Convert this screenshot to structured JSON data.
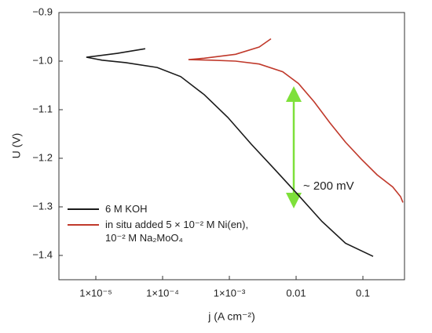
{
  "chart_data": {
    "type": "line",
    "xlabel": "j (A cm⁻²)",
    "ylabel": "U (V)",
    "xscale": "log",
    "xlim": [
      2.8e-06,
      0.42
    ],
    "ylim": [
      -1.45,
      -0.9
    ],
    "xticks": [
      {
        "value": 1e-05,
        "label": "1×10⁻⁵"
      },
      {
        "value": 0.0001,
        "label": "1×10⁻⁴"
      },
      {
        "value": 0.001,
        "label": "1×10⁻³"
      },
      {
        "value": 0.01,
        "label": "0.01"
      },
      {
        "value": 0.1,
        "label": "0.1"
      }
    ],
    "yticks": [
      {
        "value": -0.9,
        "label": "−0.9"
      },
      {
        "value": -1.0,
        "label": "−1.0"
      },
      {
        "value": -1.1,
        "label": "−1.1"
      },
      {
        "value": -1.2,
        "label": "−1.2"
      },
      {
        "value": -1.3,
        "label": "−1.3"
      },
      {
        "value": -1.4,
        "label": "−1.4"
      }
    ],
    "annotation": "~ 200 mV",
    "series": [
      {
        "name": "6 M KOH",
        "color": "#1a1a1a",
        "x": [
          5.5e-05,
          2.1e-05,
          9.5e-06,
          7.2e-06,
          1.24e-05,
          2.8e-05,
          8.3e-05,
          0.000187,
          0.00042,
          0.00095,
          0.00213,
          0.0048,
          0.0108,
          0.0244,
          0.055,
          0.142
        ],
        "values": [
          -0.9745,
          -0.984,
          -0.99,
          -0.992,
          -0.998,
          -1.003,
          -1.013,
          -1.032,
          -1.069,
          -1.116,
          -1.171,
          -1.223,
          -1.276,
          -1.33,
          -1.375,
          -1.402
        ]
      },
      {
        "name": "in situ added 5 × 10⁻² M Ni(en), 10⁻² M Na₂MoO₄",
        "color": "#c0392b",
        "x": [
          0.0042,
          0.0028,
          0.00124,
          0.00042,
          0.000244,
          0.00055,
          0.00124,
          0.0028,
          0.0063,
          0.0108,
          0.0187,
          0.032,
          0.055,
          0.095,
          0.163,
          0.28,
          0.367,
          0.398
        ],
        "values": [
          -0.954,
          -0.971,
          -0.986,
          -0.994,
          -0.997,
          -0.998,
          -1.0,
          -1.006,
          -1.022,
          -1.046,
          -1.084,
          -1.127,
          -1.167,
          -1.202,
          -1.234,
          -1.259,
          -1.279,
          -1.291
        ]
      }
    ]
  }
}
